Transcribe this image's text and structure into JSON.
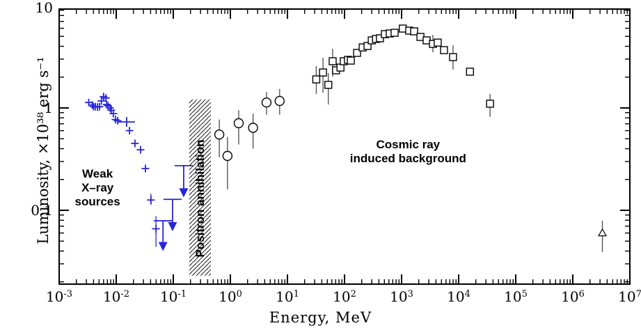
{
  "chart_data": {
    "type": "scatter",
    "title": "",
    "xlabel": "Energy, MeV",
    "ylabel": "Luminosity, ×10³⁸ erg s⁻¹",
    "x_scale": "log",
    "y_scale": "log",
    "xlim": [
      0.001,
      10000000
    ],
    "ylim": [
      0.019,
      9.3
    ],
    "grid": false,
    "legend": "none",
    "x_tick_exponents": [
      -3,
      -2,
      -1,
      0,
      1,
      2,
      3,
      4,
      5,
      6,
      7
    ],
    "y_ticks": [
      {
        "value": 10,
        "label": "10"
      },
      {
        "value": 1,
        "label": "1"
      },
      {
        "value": 0.1,
        "label": "0.1"
      }
    ],
    "colors": {
      "xray_series": "#2626d8",
      "background_series": "#000000",
      "error_bars": "#4a4a4a"
    },
    "band": {
      "label": "Positron annihilation",
      "e_min": 0.19,
      "e_max": 0.455,
      "l_min": 0.023,
      "l_max": 1.21
    },
    "annotations": {
      "weak": {
        "lines": [
          "Weak",
          "X–ray",
          "sources"
        ],
        "e": 0.0047,
        "l": 0.165
      },
      "cosmic": {
        "lines": [
          "Cosmic ray",
          "induced background"
        ],
        "e": 1300,
        "l": 0.37
      }
    },
    "series": [
      {
        "name": "weak-xray-sources",
        "marker": "plus",
        "color": "#2626d8",
        "points": [
          {
            "e": 0.0033,
            "l": 1.13
          },
          {
            "e": 0.0038,
            "l": 1.07
          },
          {
            "e": 0.004,
            "l": 1.03
          },
          {
            "e": 0.0043,
            "l": 1.03
          },
          {
            "e": 0.0047,
            "l": 1.02
          },
          {
            "e": 0.0051,
            "l": 1.03
          },
          {
            "e": 0.0055,
            "l": 1.17
          },
          {
            "e": 0.006,
            "l": 1.29
          },
          {
            "e": 0.0066,
            "l": 1.25
          },
          {
            "e": 0.0068,
            "l": 1.08
          },
          {
            "e": 0.0072,
            "l": 1.05
          },
          {
            "e": 0.0078,
            "l": 1.0
          },
          {
            "e": 0.0082,
            "l": 0.95
          },
          {
            "e": 0.0089,
            "l": 0.88
          },
          {
            "e": 0.0097,
            "l": 0.77
          },
          {
            "e": 0.0106,
            "l": 0.75
          },
          {
            "e": 0.0152,
            "l": 0.73,
            "wide": true
          },
          {
            "e": 0.0171,
            "l": 0.6
          },
          {
            "e": 0.0213,
            "l": 0.45
          },
          {
            "e": 0.0267,
            "l": 0.39
          },
          {
            "e": 0.0325,
            "l": 0.256
          },
          {
            "e": 0.0406,
            "l": 0.126,
            "lo": 0.113,
            "hi": 0.145
          },
          {
            "e": 0.0497,
            "l": 0.066,
            "lo": 0.044,
            "hi": 0.088
          }
        ]
      },
      {
        "name": "xray-upper-limits",
        "marker": "down-arrow",
        "color": "#2626d8",
        "points": [
          {
            "e": 0.066,
            "l": 0.079,
            "tip": 0.04
          },
          {
            "e": 0.097,
            "l": 0.128,
            "tip": 0.0625
          },
          {
            "e": 0.152,
            "l": 0.273,
            "tip": 0.134
          }
        ]
      },
      {
        "name": "gamma-ray-circles",
        "marker": "circle",
        "color": "#000000",
        "points": [
          {
            "e": 0.64,
            "l": 0.55,
            "lo": 0.33,
            "hi": 0.77
          },
          {
            "e": 0.89,
            "l": 0.34,
            "lo": 0.16,
            "hi": 0.52
          },
          {
            "e": 1.4,
            "l": 0.71,
            "lo": 0.44,
            "hi": 0.95
          },
          {
            "e": 2.5,
            "l": 0.64,
            "lo": 0.4,
            "hi": 0.88
          },
          {
            "e": 4.3,
            "l": 1.13,
            "lo": 0.86,
            "hi": 1.43
          },
          {
            "e": 7.3,
            "l": 1.17,
            "lo": 0.86,
            "hi": 1.53
          }
        ]
      },
      {
        "name": "cosmic-ray-background",
        "marker": "square",
        "color": "#000000",
        "points": [
          {
            "e": 32,
            "l": 1.9,
            "lo": 1.37,
            "hi": 2.56
          },
          {
            "e": 42,
            "l": 2.22,
            "lo": 1.41,
            "hi": 3.09
          },
          {
            "e": 52,
            "l": 1.68,
            "lo": 1.08,
            "hi": 2.19
          },
          {
            "e": 62,
            "l": 2.86,
            "lo": 2.02,
            "hi": 3.78
          },
          {
            "e": 71,
            "l": 2.33
          },
          {
            "e": 85,
            "l": 2.48
          },
          {
            "e": 97,
            "l": 2.86
          },
          {
            "e": 115,
            "l": 2.95
          },
          {
            "e": 129,
            "l": 2.9
          },
          {
            "e": 166,
            "l": 3.45
          },
          {
            "e": 208,
            "l": 3.9
          },
          {
            "e": 253,
            "l": 4.03
          },
          {
            "e": 300,
            "l": 4.57
          },
          {
            "e": 356,
            "l": 4.72
          },
          {
            "e": 418,
            "l": 4.79
          },
          {
            "e": 510,
            "l": 5.26
          },
          {
            "e": 620,
            "l": 5.34
          },
          {
            "e": 755,
            "l": 5.42
          },
          {
            "e": 1050,
            "l": 5.96
          },
          {
            "e": 1360,
            "l": 5.69
          },
          {
            "e": 1660,
            "l": 5.6
          },
          {
            "e": 2140,
            "l": 4.94
          },
          {
            "e": 2750,
            "l": 4.57
          },
          {
            "e": 3540,
            "l": 4.22,
            "lo": 3.5,
            "hi": 5.18
          },
          {
            "e": 4300,
            "l": 4.35
          },
          {
            "e": 5540,
            "l": 3.67
          },
          {
            "e": 7970,
            "l": 3.14,
            "lo": 2.37,
            "hi": 4.09
          },
          {
            "e": 15800,
            "l": 2.26
          },
          {
            "e": 35500,
            "l": 1.1,
            "lo": 0.82,
            "hi": 1.37
          }
        ]
      },
      {
        "name": "high-energy-triangle",
        "marker": "triangle",
        "color": "#000000",
        "points": [
          {
            "e": 3300000,
            "l": 0.06,
            "lo": 0.039,
            "hi": 0.079
          }
        ]
      }
    ]
  }
}
